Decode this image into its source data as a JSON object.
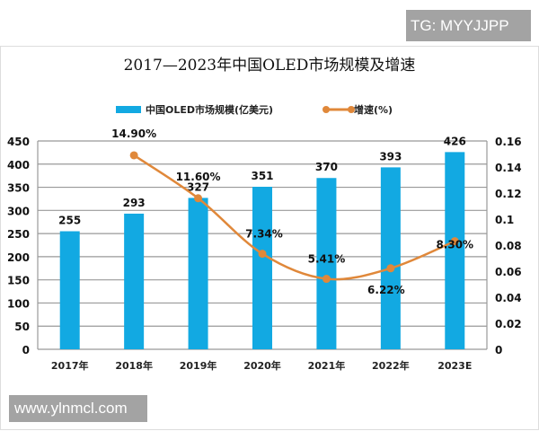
{
  "watermarks": {
    "top": "TG: MYYJJPP",
    "bottom": "www.ylnmcl.com"
  },
  "chart_data": {
    "type": "bar+line",
    "title": "2017—2023年中国OLED市场规模及增速",
    "categories": [
      "2017年",
      "2018年",
      "2019年",
      "2020年",
      "2021年",
      "2022年",
      "2023E"
    ],
    "series": [
      {
        "name": "中国OLED市场规模(亿美元)",
        "type": "bar",
        "axis": "left",
        "color": "#12a9e2",
        "values": [
          255,
          293,
          327,
          351,
          370,
          393,
          426
        ],
        "labels": [
          "255",
          "293",
          "327",
          "351",
          "370",
          "393",
          "426"
        ]
      },
      {
        "name": "增速(%)",
        "type": "line",
        "axis": "right",
        "color": "#e0883a",
        "smooth": true,
        "values": [
          null,
          0.149,
          0.116,
          0.0734,
          0.0541,
          0.0622,
          0.083
        ],
        "labels": [
          "",
          "14.90%",
          "11.60%",
          "7.34%",
          "5.41%",
          "6.22%",
          "8.30%"
        ]
      }
    ],
    "y_left": {
      "range": [
        0,
        450
      ],
      "ticks": [
        "0",
        "50",
        "100",
        "150",
        "200",
        "250",
        "300",
        "350",
        "400",
        "450"
      ]
    },
    "y_right": {
      "range": [
        0,
        0.16
      ],
      "ticks": [
        "0",
        "0.02",
        "0.04",
        "0.06",
        "0.08",
        "0.1",
        "0.12",
        "0.14",
        "0.16"
      ]
    },
    "grid": true,
    "legend": "top"
  }
}
